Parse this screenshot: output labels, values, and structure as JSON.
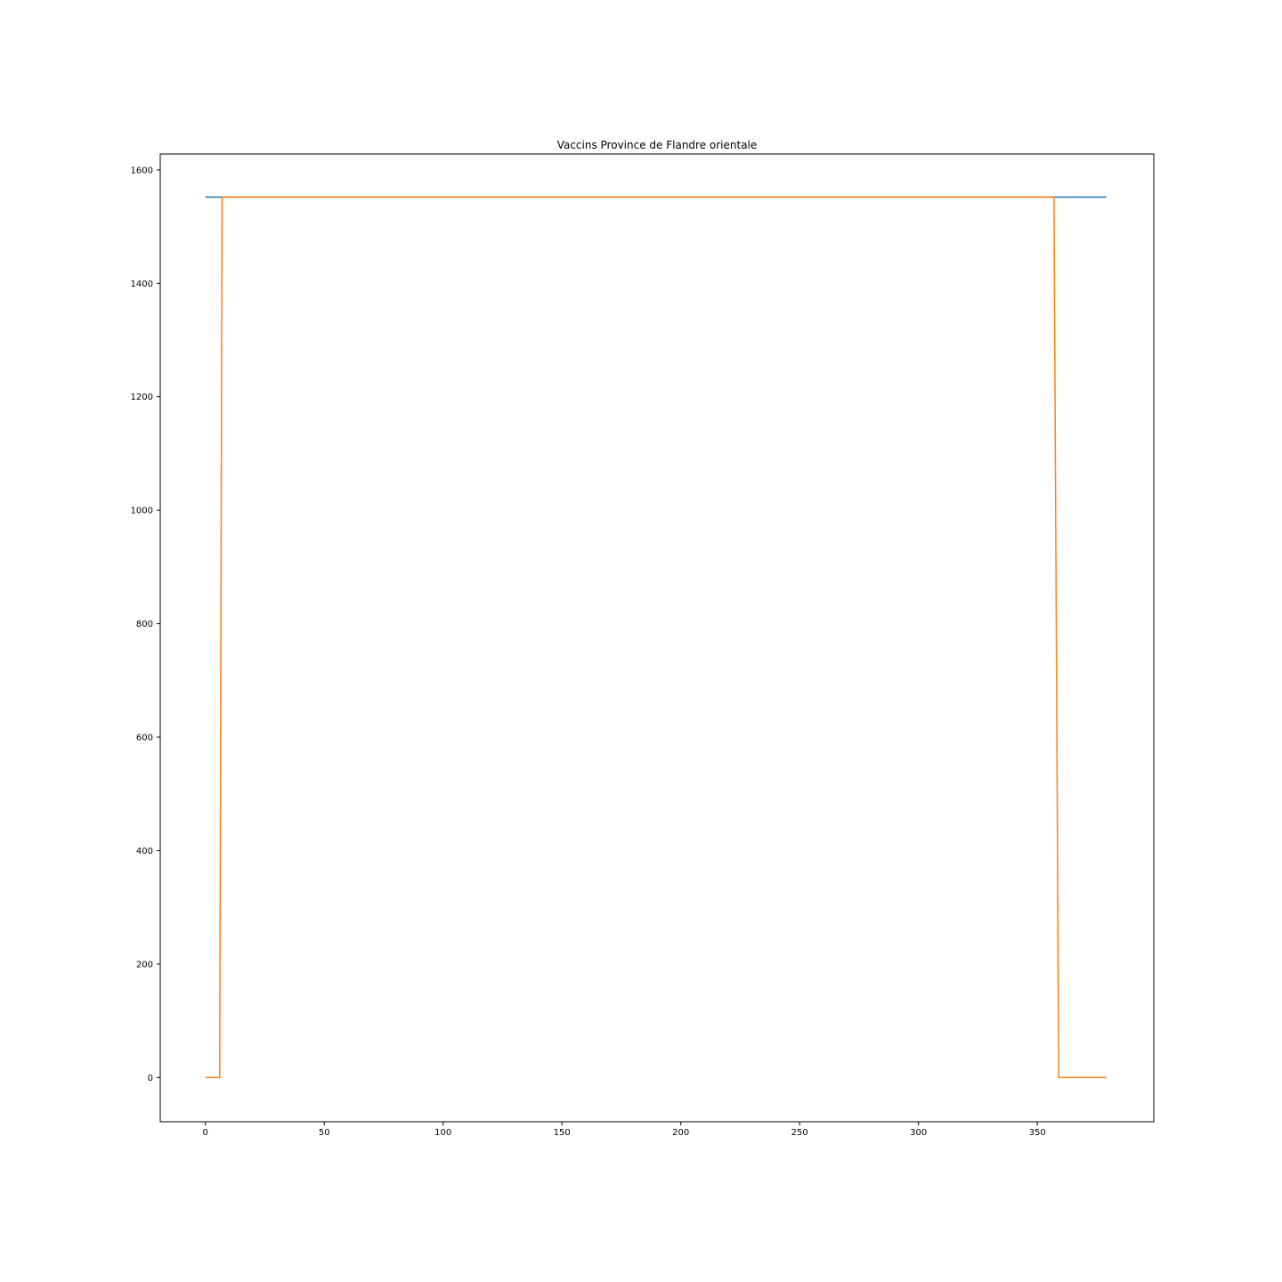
{
  "chart_data": {
    "type": "line",
    "title": "Vaccins Province de Flandre orientale",
    "xlabel": "",
    "ylabel": "",
    "xlim": [
      -19,
      399
    ],
    "ylim": [
      -78,
      1628
    ],
    "x_ticks": [
      0,
      50,
      100,
      150,
      200,
      250,
      300,
      350
    ],
    "y_ticks": [
      0,
      200,
      400,
      600,
      800,
      1000,
      1200,
      1400,
      1600
    ],
    "grid": false,
    "legend": "none",
    "series": [
      {
        "color": "#1f77b4",
        "points": [
          [
            0,
            1552
          ],
          [
            379,
            1552
          ]
        ]
      },
      {
        "color": "#ff7f0e",
        "points": [
          [
            0,
            0
          ],
          [
            6,
            0
          ],
          [
            7,
            1552
          ],
          [
            357,
            1552
          ],
          [
            359,
            0
          ],
          [
            379,
            0
          ]
        ]
      }
    ]
  }
}
